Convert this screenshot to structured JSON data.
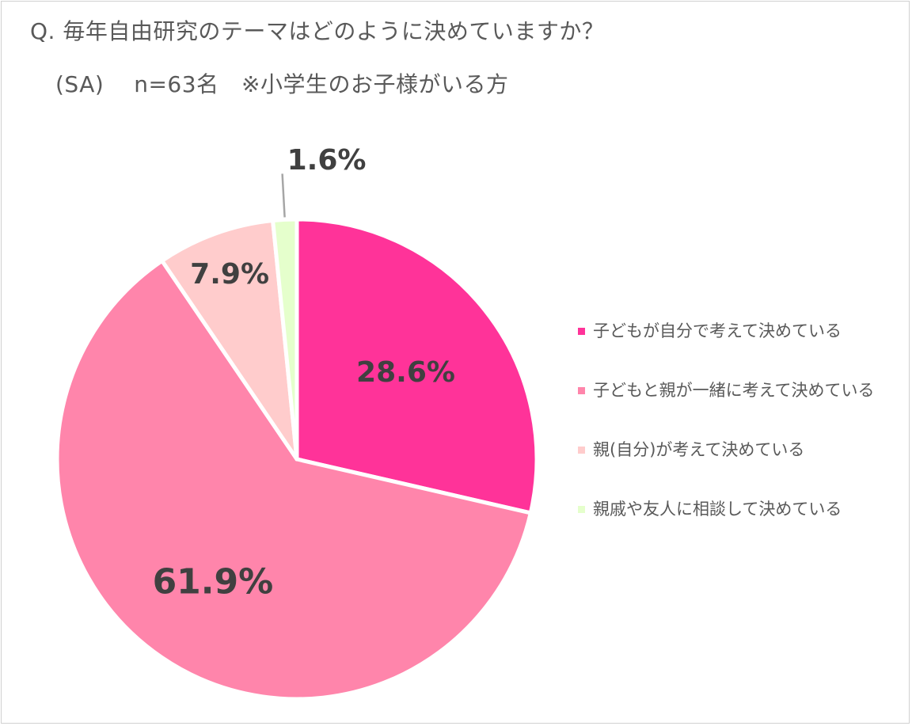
{
  "title": "Q. 毎年自由研究のテーマはどのように決めていますか？",
  "subtitle": "(SA)　 n=63名　※小学生のお子様がいる方",
  "chart_data": {
    "type": "pie",
    "title": "Q. 毎年自由研究のテーマはどのように決めていますか？",
    "subtitle": "(SA)　 n=63名　※小学生のお子様がいる方",
    "categories": [
      "子どもが自分で考えて決めている",
      "子どもと親が一緒に考えて決めている",
      "親(自分)が考えて決めている",
      "親戚や友人に相談して決めている"
    ],
    "values": [
      28.6,
      61.9,
      7.9,
      1.6
    ],
    "data_labels": [
      "28.6%",
      "61.9%",
      "7.9%",
      "1.6%"
    ],
    "colors": [
      "#ff3399",
      "#ff85ab",
      "#ffcccc",
      "#e5ffcc"
    ],
    "start": "12 o'clock, clockwise",
    "legend_position": "right"
  }
}
